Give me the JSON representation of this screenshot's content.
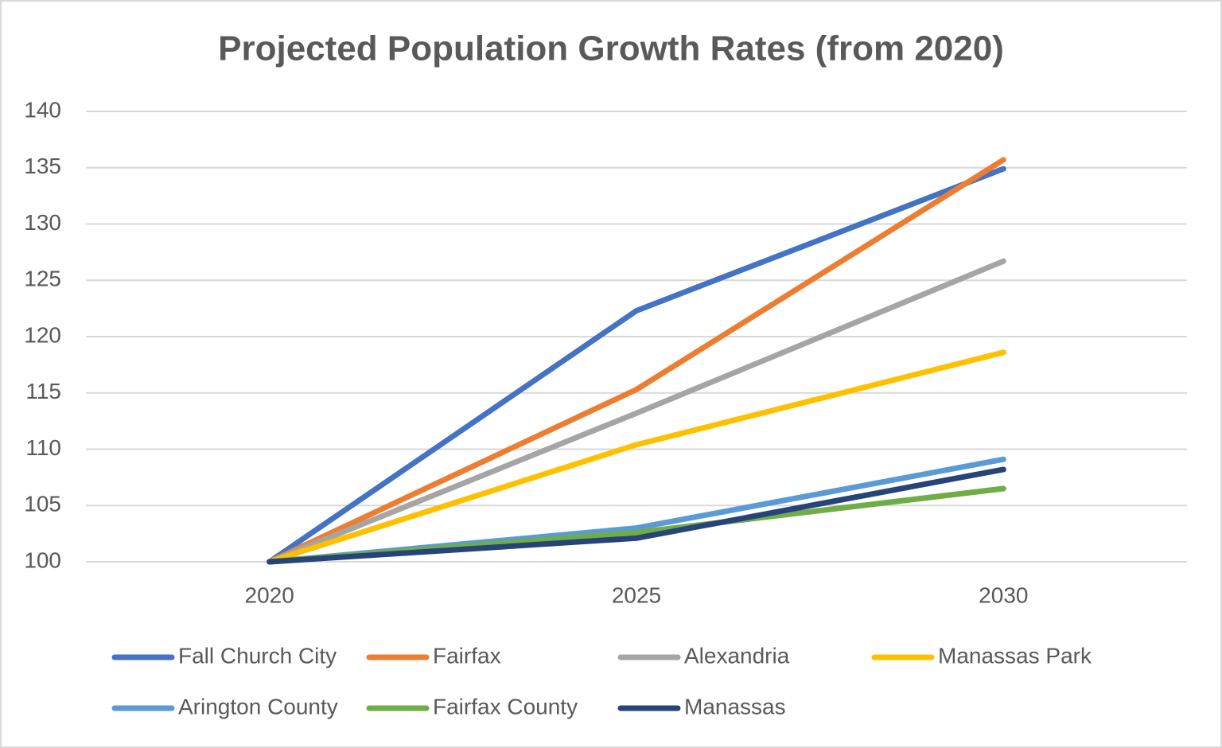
{
  "chart_data": {
    "type": "line",
    "title": "Projected Population Growth Rates (from 2020)",
    "categories": [
      "2020",
      "2025",
      "2030"
    ],
    "series": [
      {
        "name": "Fall Church City",
        "color": "#4472c4",
        "values": [
          100,
          122.3,
          134.9
        ]
      },
      {
        "name": "Fairfax",
        "color": "#ed7d31",
        "values": [
          100,
          115.3,
          135.7
        ]
      },
      {
        "name": "Alexandria",
        "color": "#a5a5a5",
        "values": [
          100,
          113.2,
          126.7
        ]
      },
      {
        "name": "Manassas Park",
        "color": "#ffc000",
        "values": [
          100,
          110.4,
          118.6
        ]
      },
      {
        "name": "Arington County",
        "color": "#5b9bd5",
        "values": [
          100,
          103.0,
          109.1
        ]
      },
      {
        "name": "Fairfax County",
        "color": "#70ad47",
        "values": [
          100,
          102.6,
          106.5
        ]
      },
      {
        "name": "Manassas",
        "color": "#264478",
        "values": [
          100,
          102.1,
          108.2
        ]
      }
    ],
    "ylim": [
      100,
      140
    ],
    "yticks": [
      100,
      105,
      110,
      115,
      120,
      125,
      130,
      135,
      140
    ],
    "grid": true,
    "legend": "bottom"
  }
}
